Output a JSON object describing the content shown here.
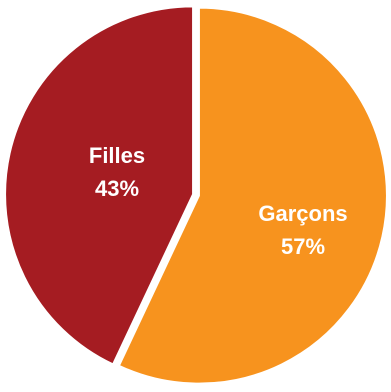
{
  "chart_data": {
    "type": "pie",
    "title": "",
    "slices": [
      {
        "category": "Garçons",
        "value": 57,
        "value_label": "57%",
        "color": "#F7931E"
      },
      {
        "category": "Filles",
        "value": 43,
        "value_label": "43%",
        "color": "#A51C22"
      }
    ],
    "legend": "none",
    "labels_inside": true,
    "slice_border_color": "#ffffff"
  }
}
